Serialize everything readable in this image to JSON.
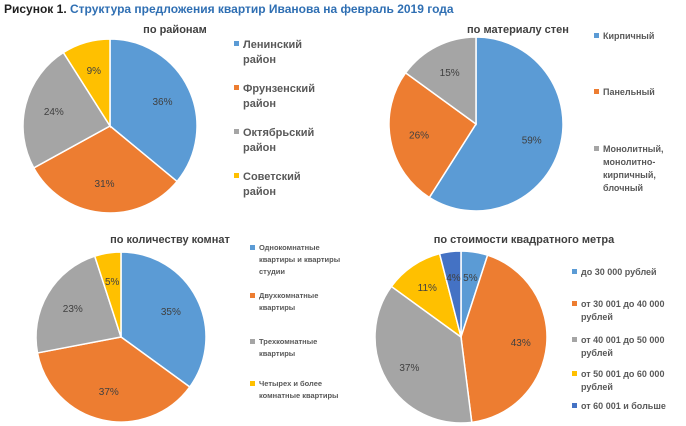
{
  "figure": {
    "prefix": "Рисунок 1.",
    "title": "Структура предложения квартир Иванова на февраль 2019 года"
  },
  "chart_data": [
    {
      "type": "pie",
      "title": "по районам",
      "labels": [
        "Ленинский район",
        "Фрунзенский район",
        "Октябрьский район",
        "Советский район"
      ],
      "values": [
        36,
        31,
        24,
        9
      ],
      "value_labels": [
        "36%",
        "31%",
        "24%",
        "9%"
      ],
      "colors": [
        "#5b9bd5",
        "#ed7d31",
        "#a5a5a5",
        "#ffc000"
      ],
      "legend": "right"
    },
    {
      "type": "pie",
      "title": "по материалу стен",
      "labels": [
        "Кирпичный",
        "Панельный",
        "Монолитный, монолитно-кирпичный, блочный"
      ],
      "values": [
        59,
        26,
        15
      ],
      "value_labels": [
        "59%",
        "26%",
        "15%"
      ],
      "colors": [
        "#5b9bd5",
        "#ed7d31",
        "#a5a5a5"
      ],
      "legend": "right"
    },
    {
      "type": "pie",
      "title": "по количеству комнат",
      "labels": [
        "Однокомнатные квартиры и квартиры студии",
        "Двухкомнатные квартиры",
        "Трехкомнатные квартиры",
        "Четырех и более комнатные квартиры"
      ],
      "values": [
        35,
        37,
        23,
        5
      ],
      "value_labels": [
        "35%",
        "37%",
        "23%",
        "5%"
      ],
      "colors": [
        "#5b9bd5",
        "#ed7d31",
        "#a5a5a5",
        "#ffc000"
      ],
      "legend": "right"
    },
    {
      "type": "pie",
      "title": "по стоимости квадратного метра",
      "labels": [
        "до 30 000 рублей",
        "от 30 001 до 40 000 рублей",
        "от 40 001 до 50 000 рублей",
        "от 50 001 до 60 000 рублей",
        "от 60 001 и больше"
      ],
      "values": [
        5,
        43,
        37,
        11,
        4
      ],
      "value_labels": [
        "5%",
        "43%",
        "37%",
        "11%",
        "4%"
      ],
      "colors": [
        "#5b9bd5",
        "#ed7d31",
        "#a5a5a5",
        "#ffc000",
        "#4472c4"
      ],
      "legend": "right"
    }
  ]
}
